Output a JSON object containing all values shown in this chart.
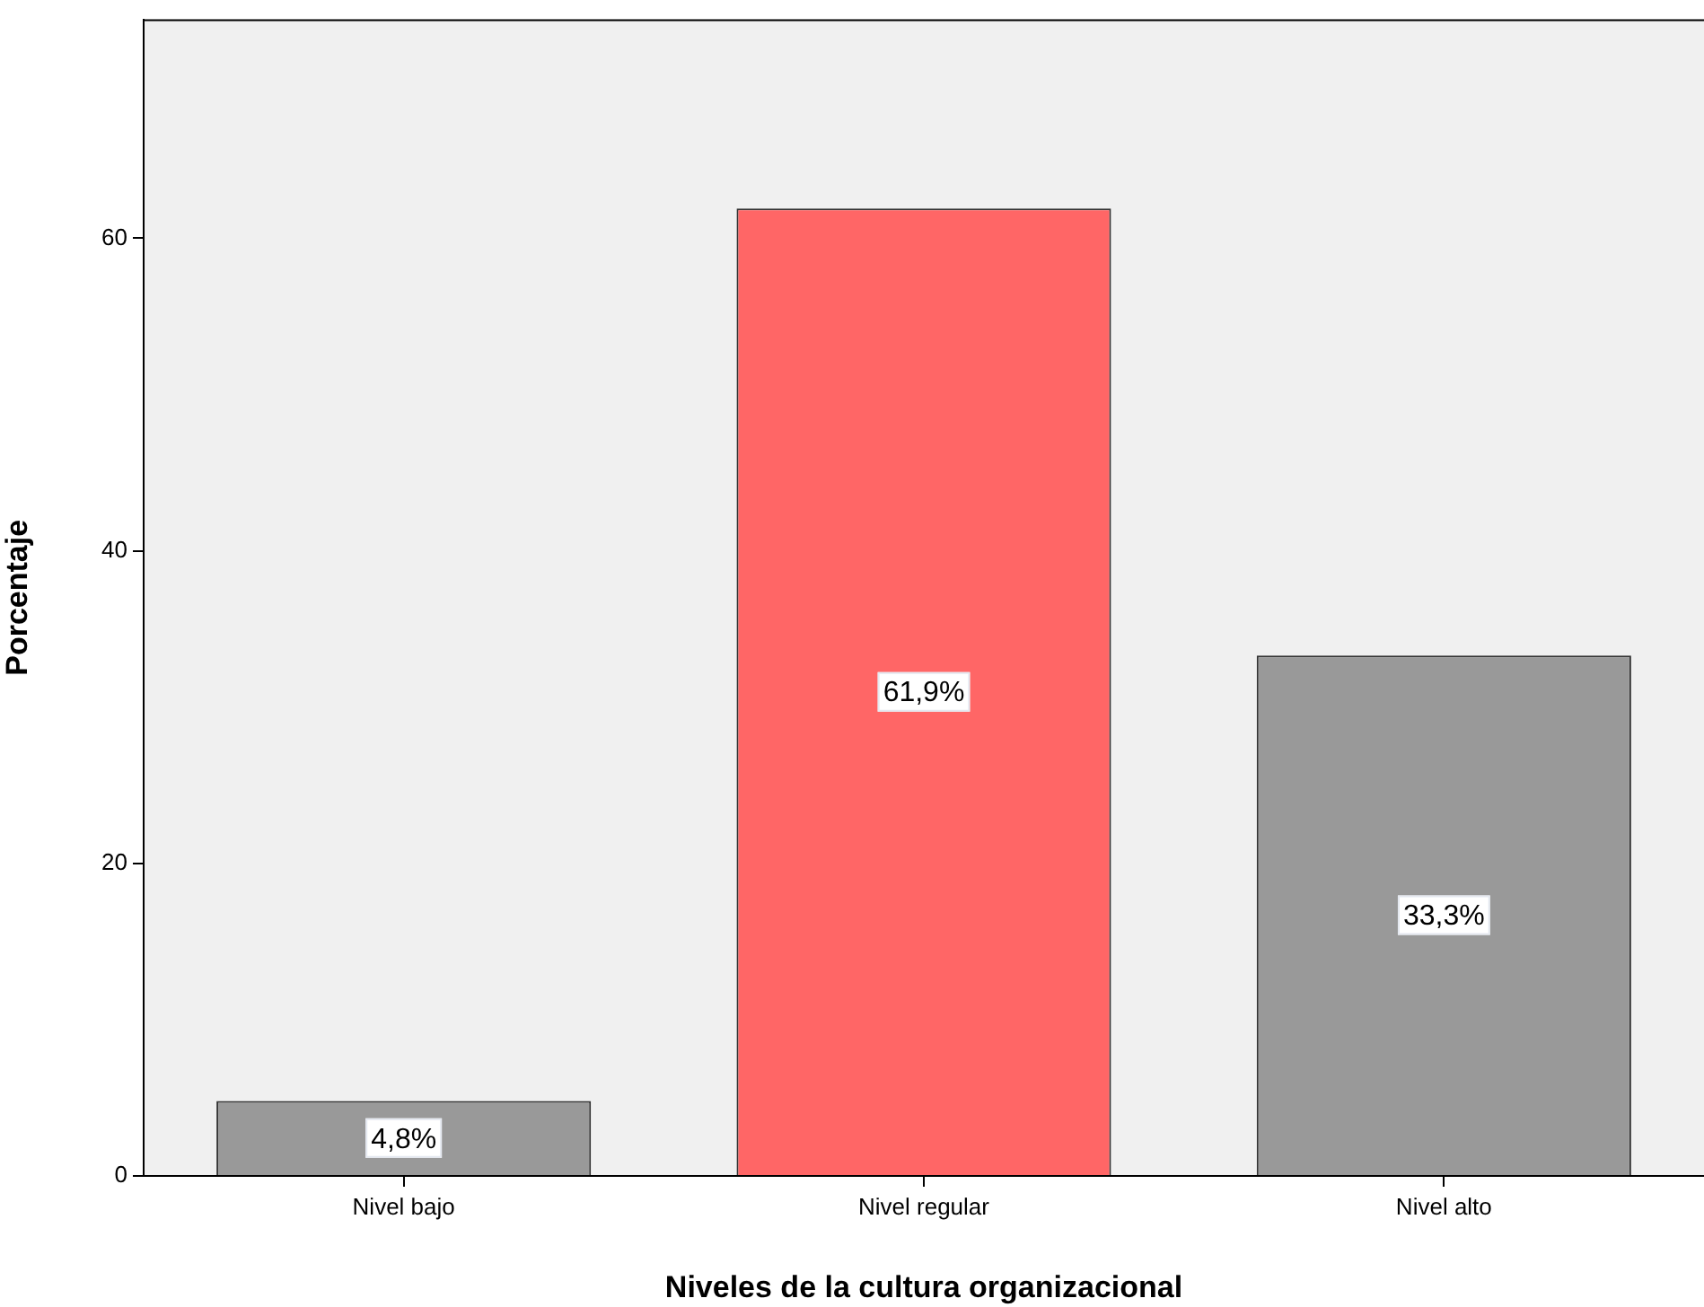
{
  "chart_data": {
    "type": "bar",
    "xlabel": "Niveles de la cultura organizacional",
    "ylabel": "Porcentaje",
    "categories": [
      "Nivel bajo",
      "Nivel regular",
      "Nivel alto"
    ],
    "values": [
      4.8,
      61.9,
      33.3
    ],
    "colors": [
      "#999999",
      "#ff6666",
      "#999999"
    ],
    "value_labels": [
      "4,8%",
      "61,9%",
      "33,3%"
    ],
    "ylim": [
      0,
      74
    ],
    "yticks": [
      0,
      20,
      40,
      60
    ],
    "grid": false,
    "legend": false
  }
}
